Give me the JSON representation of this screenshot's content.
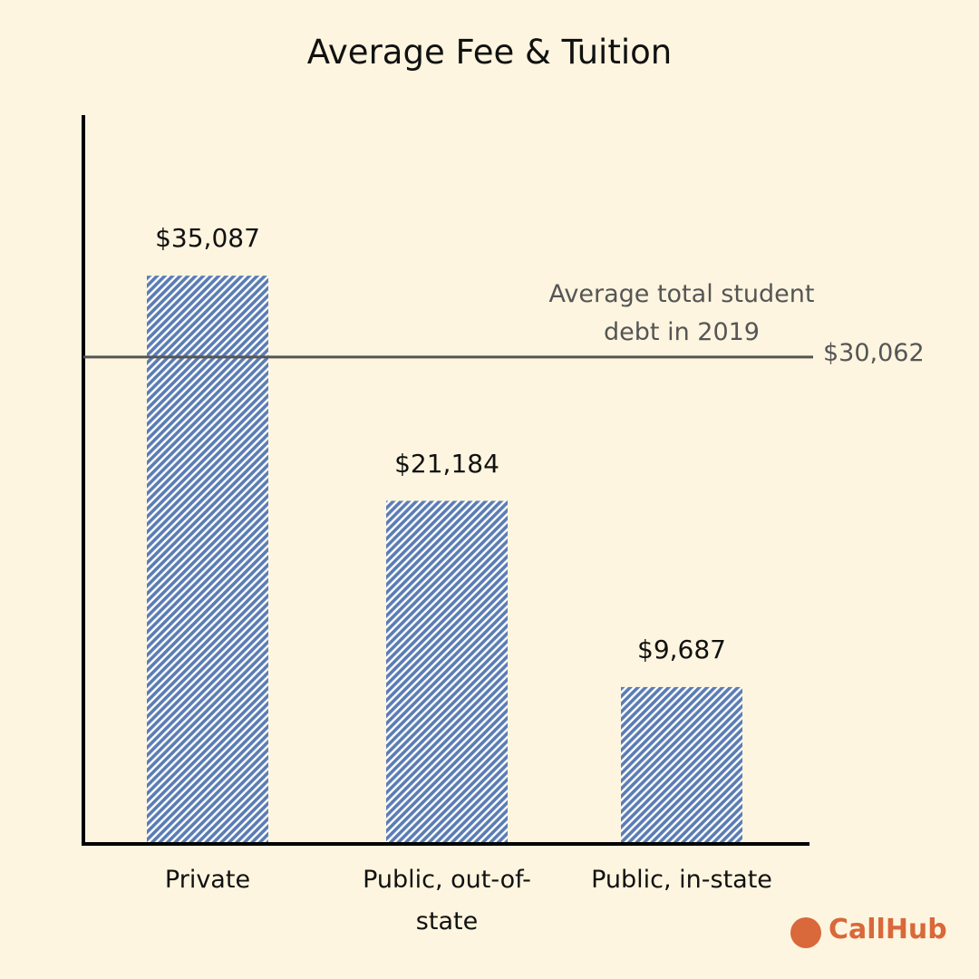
{
  "chart_data": {
    "type": "bar",
    "title": "Average Fee & Tuition",
    "categories": [
      "Private",
      "Public, out-of-state",
      "Public, in-state"
    ],
    "values": [
      35087,
      21184,
      9687
    ],
    "value_labels": [
      "$35,087",
      "$21,184",
      "$9,687"
    ],
    "color": "#5b7db4",
    "ylim": [
      0,
      45000
    ],
    "reference_line": {
      "value": 30062,
      "label": "$30,062",
      "annotation": "Average total student debt in 2019",
      "color": "#555555"
    }
  },
  "logo": "CallHub"
}
